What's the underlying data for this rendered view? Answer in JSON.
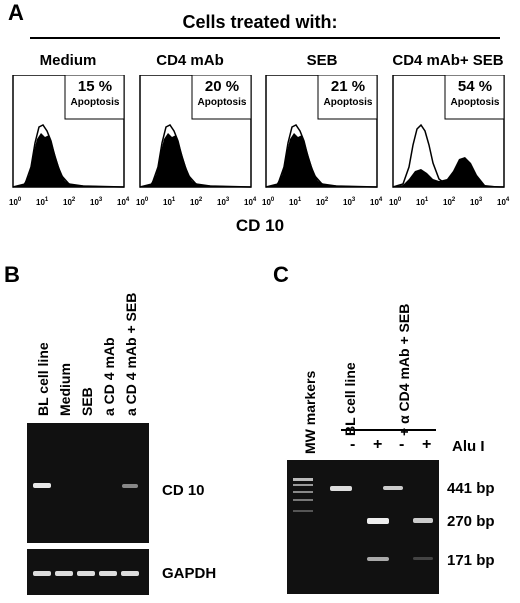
{
  "panel_a": {
    "letter": "A",
    "header": "Cells treated with:",
    "conditions": [
      {
        "title": "Medium",
        "percent": "15 %",
        "label": "Apoptosis"
      },
      {
        "title": "CD4 mAb",
        "percent": "20 %",
        "label": "Apoptosis"
      },
      {
        "title": "SEB",
        "percent": "21 %",
        "label": "Apoptosis"
      },
      {
        "title": "CD4 mAb+ SEB",
        "percent": "54 %",
        "label": "Apoptosis"
      }
    ],
    "axis_label": "CD 10",
    "tick_base": "10",
    "tick_exps": [
      "0",
      "1",
      "2",
      "3",
      "4"
    ]
  },
  "panel_b": {
    "letter": "B",
    "lanes": [
      "BL cell line",
      "Medium",
      "SEB",
      "a CD 4 mAb",
      "a CD 4 mAb + SEB"
    ],
    "gene1": "CD 10",
    "gene2": "GAPDH"
  },
  "panel_c": {
    "letter": "C",
    "lane_markers": "MW markers",
    "lane_bl": "BL cell line",
    "lane_treated": "+ α CD4 mAb + SEB",
    "enzyme": "Alu I",
    "signs": [
      "-",
      "+",
      "-",
      "+"
    ],
    "sizes": [
      "441 bp",
      "270 bp",
      "171 bp"
    ]
  }
}
